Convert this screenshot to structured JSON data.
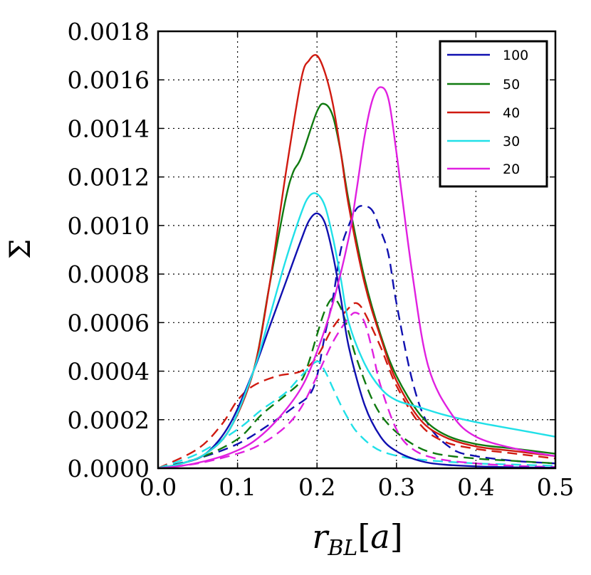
{
  "chart_data": {
    "type": "line",
    "title": "",
    "xlabel": "r",
    "xlabel_subscript": "BL",
    "xlabel_unit": "a",
    "ylabel": "Σ",
    "xlim": [
      0.0,
      0.5
    ],
    "ylim": [
      0.0,
      0.0018
    ],
    "grid": true,
    "legend_position": "top-right",
    "x_ticks": [
      0.0,
      0.1,
      0.2,
      0.3,
      0.4,
      0.5
    ],
    "x_tick_labels": [
      "0.0",
      "0.1",
      "0.2",
      "0.3",
      "0.4",
      "0.5"
    ],
    "y_ticks": [
      0.0,
      0.0002,
      0.0004,
      0.0006,
      0.0008,
      0.001,
      0.0012,
      0.0014,
      0.0016,
      0.0018
    ],
    "y_tick_labels": [
      "0.0000",
      "0.0002",
      "0.0004",
      "0.0006",
      "0.0008",
      "0.0010",
      "0.0012",
      "0.0014",
      "0.0016",
      "0.0018"
    ],
    "series": [
      {
        "name": "100",
        "color": "#1010b0",
        "style": "solid",
        "x": [
          0.0,
          0.03,
          0.06,
          0.09,
          0.12,
          0.14,
          0.16,
          0.18,
          0.19,
          0.2,
          0.21,
          0.22,
          0.23,
          0.24,
          0.26,
          0.28,
          0.3,
          0.33,
          0.36,
          0.4,
          0.45,
          0.5
        ],
        "y": [
          0.0,
          2e-05,
          6e-05,
          0.00018,
          0.0004,
          0.00058,
          0.00076,
          0.00094,
          0.00102,
          0.00105,
          0.00101,
          0.00088,
          0.0007,
          0.0005,
          0.00026,
          0.00013,
          7e-05,
          3e-05,
          1.5e-05,
          8e-06,
          4e-06,
          2e-06
        ]
      },
      {
        "name": "50",
        "color": "#107a10",
        "style": "solid",
        "x": [
          0.0,
          0.03,
          0.06,
          0.09,
          0.12,
          0.14,
          0.16,
          0.17,
          0.18,
          0.2,
          0.21,
          0.22,
          0.23,
          0.24,
          0.26,
          0.28,
          0.3,
          0.33,
          0.36,
          0.4,
          0.45,
          0.5
        ],
        "y": [
          0.0,
          2e-05,
          6e-05,
          0.00016,
          0.0004,
          0.00075,
          0.0011,
          0.00122,
          0.00128,
          0.00147,
          0.0015,
          0.00145,
          0.0013,
          0.0011,
          0.00078,
          0.00055,
          0.00038,
          0.00022,
          0.00014,
          0.0001,
          8e-05,
          6e-05
        ]
      },
      {
        "name": "40",
        "color": "#d01a10",
        "style": "solid",
        "x": [
          0.0,
          0.03,
          0.06,
          0.09,
          0.12,
          0.14,
          0.16,
          0.18,
          0.19,
          0.2,
          0.21,
          0.22,
          0.23,
          0.24,
          0.26,
          0.28,
          0.3,
          0.33,
          0.36,
          0.4,
          0.45,
          0.5
        ],
        "y": [
          0.0,
          2e-05,
          6e-05,
          0.00016,
          0.0004,
          0.00075,
          0.0012,
          0.0016,
          0.00168,
          0.0017,
          0.00163,
          0.0015,
          0.0013,
          0.00108,
          0.00076,
          0.00054,
          0.00036,
          0.0002,
          0.00013,
          9e-05,
          7e-05,
          5e-05
        ]
      },
      {
        "name": "30",
        "color": "#20e0e8",
        "style": "solid",
        "x": [
          0.0,
          0.03,
          0.06,
          0.09,
          0.12,
          0.14,
          0.16,
          0.18,
          0.19,
          0.2,
          0.21,
          0.22,
          0.23,
          0.24,
          0.26,
          0.28,
          0.3,
          0.33,
          0.36,
          0.4,
          0.45,
          0.5
        ],
        "y": [
          0.0,
          2e-05,
          6e-05,
          0.00016,
          0.0004,
          0.00062,
          0.00085,
          0.00105,
          0.00112,
          0.00113,
          0.00108,
          0.00095,
          0.00078,
          0.0006,
          0.00043,
          0.00033,
          0.00028,
          0.00025,
          0.00022,
          0.00019,
          0.00016,
          0.00013
        ]
      },
      {
        "name": "20",
        "color": "#e020e0",
        "style": "solid",
        "x": [
          0.0,
          0.03,
          0.06,
          0.09,
          0.12,
          0.15,
          0.18,
          0.2,
          0.22,
          0.24,
          0.25,
          0.26,
          0.27,
          0.28,
          0.29,
          0.3,
          0.32,
          0.34,
          0.37,
          0.4,
          0.45,
          0.5
        ],
        "y": [
          0.0,
          1e-05,
          3e-05,
          6e-05,
          0.00011,
          0.0002,
          0.00033,
          0.00048,
          0.00068,
          0.00095,
          0.00115,
          0.00137,
          0.00152,
          0.00157,
          0.00152,
          0.0013,
          0.0008,
          0.00042,
          0.00022,
          0.00013,
          8e-05,
          5e-05
        ]
      },
      {
        "name": "100",
        "color": "#1010b0",
        "style": "dashed",
        "x": [
          0.0,
          0.05,
          0.1,
          0.14,
          0.17,
          0.19,
          0.2,
          0.21,
          0.22,
          0.23,
          0.24,
          0.25,
          0.26,
          0.27,
          0.28,
          0.29,
          0.3,
          0.32,
          0.34,
          0.37,
          0.4,
          0.45,
          0.5
        ],
        "y": [
          0.0,
          4e-05,
          0.0001,
          0.00018,
          0.00025,
          0.0003,
          0.00038,
          0.00055,
          0.0007,
          0.0009,
          0.001,
          0.00107,
          0.00108,
          0.00106,
          0.00098,
          0.00088,
          0.00068,
          0.00036,
          0.00018,
          8e-05,
          5e-05,
          3e-05,
          2e-05
        ]
      },
      {
        "name": "50",
        "color": "#107a10",
        "style": "dashed",
        "x": [
          0.0,
          0.05,
          0.1,
          0.13,
          0.16,
          0.18,
          0.19,
          0.2,
          0.21,
          0.22,
          0.23,
          0.24,
          0.25,
          0.27,
          0.29,
          0.32,
          0.35,
          0.4,
          0.45,
          0.5
        ],
        "y": [
          0.0,
          4e-05,
          0.00012,
          0.00022,
          0.0003,
          0.00036,
          0.00044,
          0.00055,
          0.00065,
          0.0007,
          0.00066,
          0.00056,
          0.00045,
          0.00028,
          0.00018,
          0.0001,
          6e-05,
          4e-05,
          3e-05,
          2e-05
        ]
      },
      {
        "name": "40",
        "color": "#d01a10",
        "style": "dashed",
        "x": [
          0.0,
          0.05,
          0.08,
          0.1,
          0.12,
          0.15,
          0.18,
          0.2,
          0.22,
          0.24,
          0.25,
          0.26,
          0.28,
          0.3,
          0.33,
          0.36,
          0.4,
          0.45,
          0.5
        ],
        "y": [
          0.0,
          8e-05,
          0.00018,
          0.00028,
          0.00034,
          0.00038,
          0.0004,
          0.00046,
          0.00058,
          0.00066,
          0.00068,
          0.00064,
          0.0005,
          0.00034,
          0.00018,
          0.00011,
          8e-05,
          6e-05,
          4e-05
        ]
      },
      {
        "name": "30",
        "color": "#20e0e8",
        "style": "dashed",
        "x": [
          0.0,
          0.05,
          0.1,
          0.13,
          0.16,
          0.18,
          0.2,
          0.21,
          0.22,
          0.23,
          0.24,
          0.25,
          0.27,
          0.29,
          0.32,
          0.35,
          0.4,
          0.45,
          0.5
        ],
        "y": [
          0.0,
          6e-05,
          0.00016,
          0.00024,
          0.00031,
          0.00038,
          0.00044,
          0.0004,
          0.00033,
          0.00026,
          0.0002,
          0.00015,
          9e-05,
          6e-05,
          4e-05,
          3e-05,
          2e-05,
          1.5e-05,
          1e-05
        ]
      },
      {
        "name": "20",
        "color": "#e020e0",
        "style": "dashed",
        "x": [
          0.0,
          0.05,
          0.1,
          0.13,
          0.16,
          0.18,
          0.2,
          0.22,
          0.24,
          0.25,
          0.26,
          0.27,
          0.28,
          0.3,
          0.32,
          0.35,
          0.4,
          0.45,
          0.5
        ],
        "y": [
          0.0,
          2e-05,
          6e-05,
          0.0001,
          0.00017,
          0.00025,
          0.00038,
          0.00052,
          0.00062,
          0.00064,
          0.0006,
          0.00048,
          0.00034,
          0.00016,
          8e-05,
          4e-05,
          2e-05,
          1e-05,
          5e-06
        ]
      }
    ],
    "legend": [
      {
        "label": "100",
        "color": "#1010b0"
      },
      {
        "label": "50",
        "color": "#107a10"
      },
      {
        "label": "40",
        "color": "#d01a10"
      },
      {
        "label": "30",
        "color": "#20e0e8"
      },
      {
        "label": "20",
        "color": "#e020e0"
      }
    ]
  }
}
